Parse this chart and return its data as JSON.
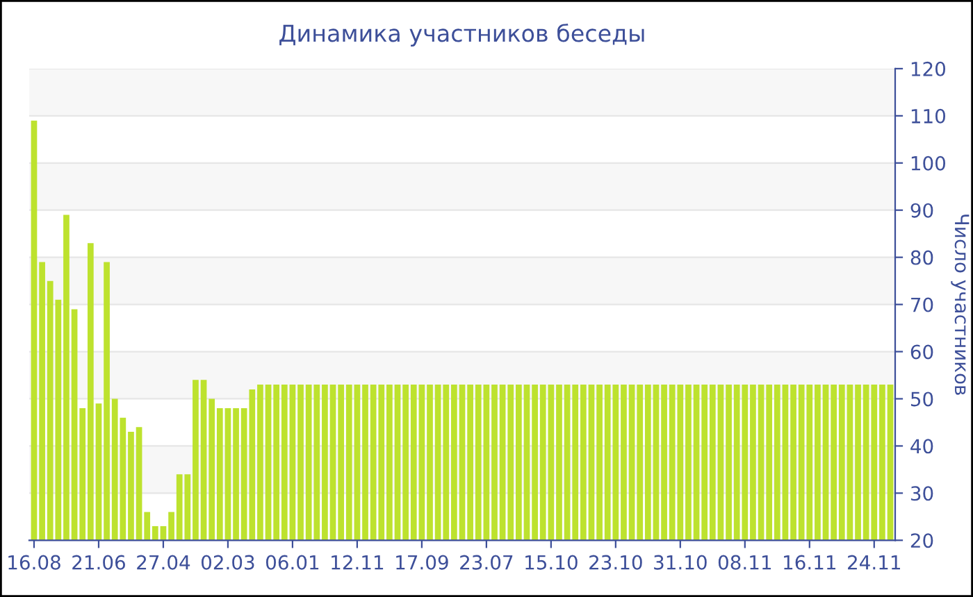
{
  "chart_data": {
    "type": "bar",
    "title": "Динамика участников беседы",
    "ylabel": "Число участников",
    "categories": [
      "16.08",
      null,
      null,
      null,
      null,
      null,
      null,
      null,
      "21.06",
      null,
      null,
      null,
      null,
      null,
      null,
      null,
      "27.04",
      null,
      null,
      null,
      null,
      null,
      null,
      null,
      "02.03",
      null,
      null,
      null,
      null,
      null,
      null,
      null,
      "06.01",
      null,
      null,
      null,
      null,
      null,
      null,
      null,
      "12.11",
      null,
      null,
      null,
      null,
      null,
      null,
      null,
      "17.09",
      null,
      null,
      null,
      null,
      null,
      null,
      null,
      "23.07",
      null,
      null,
      null,
      null,
      null,
      null,
      null,
      "15.10",
      null,
      null,
      null,
      null,
      null,
      null,
      null,
      "23.10",
      null,
      null,
      null,
      null,
      null,
      null,
      null,
      "31.10",
      null,
      null,
      null,
      null,
      null,
      null,
      null,
      "08.11",
      null,
      null,
      null,
      null,
      null,
      null,
      null,
      "16.11",
      null,
      null,
      null,
      null,
      null,
      null,
      null,
      "24.11",
      null,
      null
    ],
    "values": [
      109,
      79,
      75,
      71,
      89,
      69,
      48,
      83,
      49,
      79,
      50,
      46,
      43,
      44,
      26,
      23,
      23,
      26,
      34,
      34,
      54,
      54,
      50,
      48,
      48,
      48,
      48,
      52,
      53,
      53,
      53,
      53,
      53,
      53,
      53,
      53,
      53,
      53,
      53,
      53,
      53,
      53,
      53,
      53,
      53,
      53,
      53,
      53,
      53,
      53,
      53,
      53,
      53,
      53,
      53,
      53,
      53,
      53,
      53,
      53,
      53,
      53,
      53,
      53,
      53,
      53,
      53,
      53,
      53,
      53,
      53,
      53,
      53,
      53,
      53,
      53,
      53,
      53,
      53,
      53,
      53,
      53,
      53,
      53,
      53,
      53,
      53,
      53,
      53,
      53,
      53,
      53,
      53,
      53,
      53,
      53,
      53,
      53,
      53,
      53,
      53,
      53,
      53,
      53,
      53,
      53,
      53
    ],
    "color": "#bde22e",
    "ylim": [
      20,
      120
    ],
    "yticks": [
      20,
      30,
      40,
      50,
      60,
      70,
      80,
      90,
      100,
      110,
      120
    ],
    "grid": "y",
    "legend": false
  }
}
